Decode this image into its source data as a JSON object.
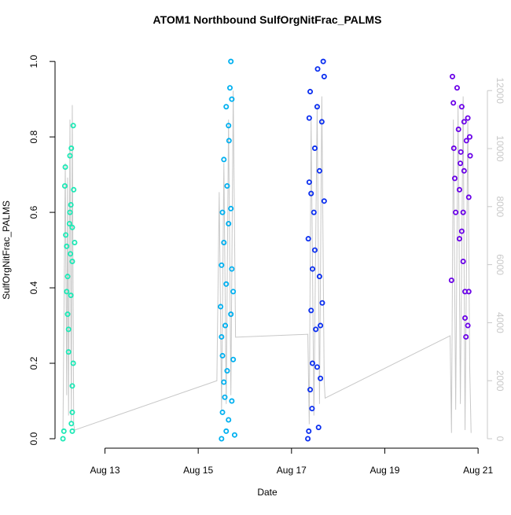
{
  "chart_data": {
    "type": "scatter",
    "title": "ATOM1 Northbound SulfOrgNitFrac_PALMS",
    "x_label": "Date",
    "y_label": "SulfOrgNitFrac_PALMS",
    "xlim": [
      11.93,
      21.2
    ],
    "xticks": [
      {
        "value": 13,
        "label": "Aug 13"
      },
      {
        "value": 15,
        "label": "Aug 15"
      },
      {
        "value": 17,
        "label": "Aug 17"
      },
      {
        "value": 19,
        "label": "Aug 19"
      },
      {
        "value": 21,
        "label": "Aug 21"
      }
    ],
    "ylim": [
      -0.025,
      1.042
    ],
    "yticks": [
      {
        "value": 0,
        "label": "0.0"
      },
      0.2,
      0.4,
      0.6,
      0.8,
      {
        "value": 1,
        "label": "1.0"
      }
    ],
    "y2lim": [
      -325,
      13550
    ],
    "y2ticks": [
      0,
      2000,
      4000,
      6000,
      8000,
      10000,
      12000
    ],
    "y2_color": "#c8c8c8",
    "series": [
      {
        "color": "#1de9b6",
        "x": [
          12.1,
          12.12,
          12.15,
          12.14,
          12.16,
          12.18,
          12.2,
          12.18,
          12.2,
          12.22,
          12.22,
          12.25,
          12.25,
          12.27,
          12.28,
          12.3,
          12.3,
          12.32,
          12.32,
          12.3,
          12.3,
          12.28,
          12.3,
          12.35,
          12.33,
          12.27,
          12.24,
          12.26
        ],
        "values": [
          0.0,
          0.02,
          0.72,
          0.67,
          0.54,
          0.51,
          0.43,
          0.39,
          0.33,
          0.29,
          0.23,
          0.6,
          0.75,
          0.62,
          0.77,
          0.56,
          0.47,
          0.83,
          0.2,
          0.14,
          0.07,
          0.04,
          0.02,
          0.52,
          0.66,
          0.38,
          0.57,
          0.49
        ]
      },
      {
        "color": "#00b0f0",
        "x": [
          15.5,
          15.5,
          15.48,
          15.5,
          15.52,
          15.55,
          15.55,
          15.52,
          15.55,
          15.52,
          15.6,
          15.6,
          15.62,
          15.6,
          15.58,
          15.65,
          15.66,
          15.65,
          15.68,
          15.7,
          15.72,
          15.7,
          15.72,
          15.7,
          15.75,
          15.75,
          15.78,
          15.72,
          15.62,
          15.57,
          15.65
        ],
        "values": [
          0.0,
          0.27,
          0.35,
          0.46,
          0.6,
          0.74,
          0.52,
          0.22,
          0.15,
          0.07,
          0.02,
          0.88,
          0.67,
          0.41,
          0.3,
          0.83,
          0.79,
          0.57,
          0.93,
          1.0,
          0.9,
          0.61,
          0.45,
          0.33,
          0.21,
          0.39,
          0.01,
          0.1,
          0.18,
          0.11,
          0.05
        ]
      },
      {
        "color": "#0a2ef0",
        "x": [
          17.35,
          17.37,
          17.36,
          17.38,
          17.38,
          17.4,
          17.42,
          17.42,
          17.44,
          17.45,
          17.48,
          17.5,
          17.5,
          17.52,
          17.55,
          17.55,
          17.56,
          17.6,
          17.6,
          17.62,
          17.62,
          17.65,
          17.68,
          17.7,
          17.7,
          17.58,
          17.45,
          17.4,
          17.66
        ],
        "values": [
          0.0,
          0.02,
          0.53,
          0.68,
          0.85,
          0.92,
          0.65,
          0.34,
          0.08,
          0.45,
          0.6,
          0.77,
          0.5,
          0.29,
          0.19,
          0.88,
          0.98,
          0.71,
          0.43,
          0.3,
          0.16,
          0.84,
          1.0,
          0.96,
          0.63,
          0.03,
          0.2,
          0.13,
          0.36
        ]
      },
      {
        "color": "#6a00e8",
        "x": [
          20.43,
          20.45,
          20.47,
          20.48,
          20.5,
          20.52,
          20.55,
          20.58,
          20.6,
          20.6,
          20.62,
          20.65,
          20.65,
          20.68,
          20.68,
          20.7,
          20.72,
          20.72,
          20.74,
          20.75,
          20.78,
          20.8,
          20.8,
          20.82,
          20.83,
          20.78,
          20.7,
          20.63
        ],
        "values": [
          0.42,
          0.96,
          0.89,
          0.77,
          0.69,
          0.6,
          0.93,
          0.82,
          0.66,
          0.53,
          0.73,
          0.88,
          0.55,
          0.47,
          0.6,
          0.71,
          0.39,
          0.32,
          0.27,
          0.79,
          0.3,
          0.39,
          0.64,
          0.8,
          0.75,
          0.85,
          0.84,
          0.76
        ]
      },
      {
        "type": "line",
        "axis": "y2",
        "color": "#c8c8c8",
        "x": [
          12.1,
          12.15,
          12.18,
          12.2,
          12.22,
          12.25,
          12.28,
          12.3,
          12.33,
          12.35,
          15.4,
          15.45,
          15.5,
          15.55,
          15.6,
          15.65,
          15.7,
          15.75,
          15.8,
          17.35,
          17.38,
          17.42,
          17.48,
          17.55,
          17.6,
          17.65,
          17.7,
          17.72,
          20.4,
          20.43,
          20.47,
          20.52,
          20.57,
          20.62,
          20.68,
          20.72,
          20.78,
          20.82,
          20.85
        ],
        "values": [
          300,
          9500,
          1500,
          9000,
          800,
          11000,
          600,
          11500,
          500,
          300,
          2000,
          8500,
          1000,
          9500,
          1200,
          11000,
          1500,
          12000,
          3500,
          3600,
          500,
          11000,
          800,
          11500,
          1200,
          11800,
          2000,
          1400,
          3550,
          200,
          11000,
          1000,
          11500,
          1200,
          11800,
          300,
          11000,
          2500,
          200
        ]
      }
    ]
  }
}
